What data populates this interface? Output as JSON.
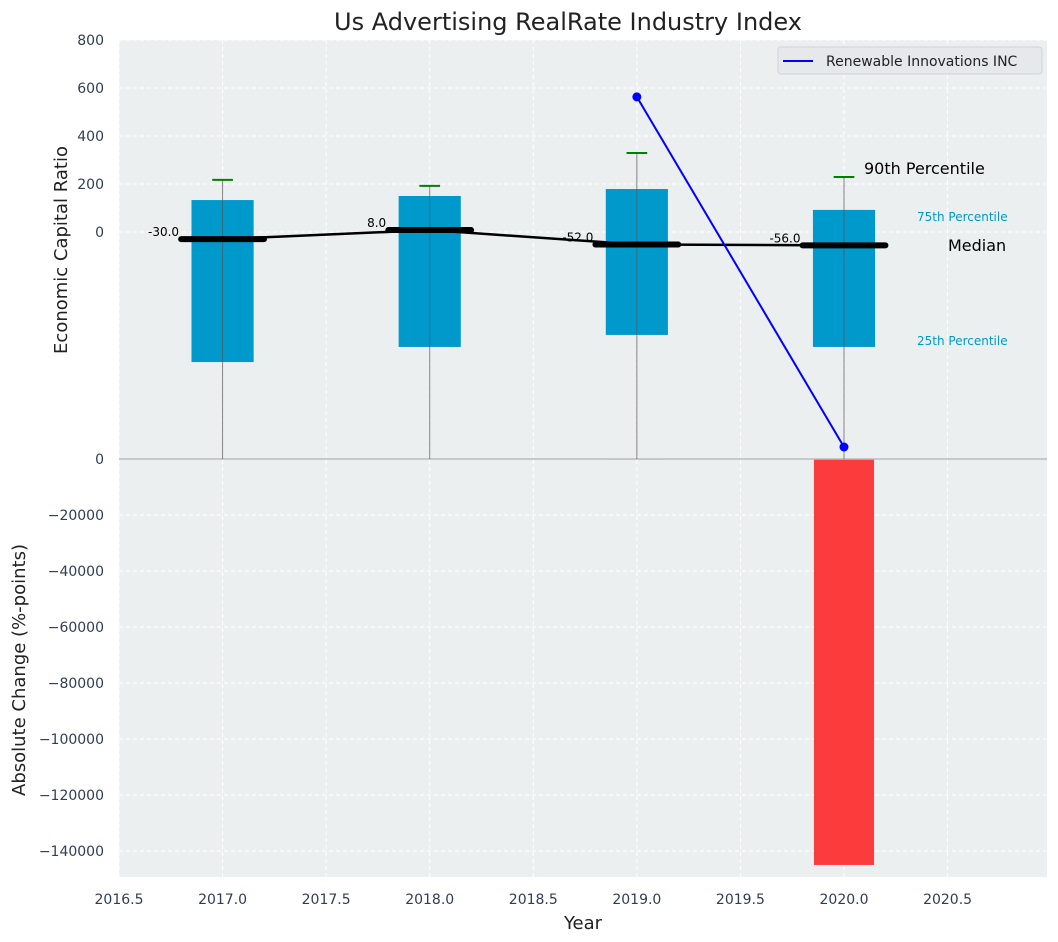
{
  "chart_data": [
    {
      "type": "bar",
      "panel": "top",
      "title": "Us Advertising RealRate Industry Index",
      "ylabel": "Economic Capital Ratio",
      "xlim": [
        2016.5,
        2020.98
      ],
      "ylim": [
        -946,
        800
      ],
      "grid": true,
      "y_ticks": [
        "0",
        "200",
        "400",
        "600",
        "800"
      ],
      "y_tick_values": [
        0,
        200,
        400,
        600,
        800
      ],
      "categories": [
        2017,
        2018,
        2019,
        2020
      ],
      "percentile_25": [
        -542,
        -479,
        -429,
        -479
      ],
      "percentile_75": [
        133,
        150,
        179,
        92
      ],
      "percentile_90": [
        217,
        192,
        329,
        229
      ],
      "whisker_low": [
        -946,
        -946,
        -946,
        -946
      ],
      "median": [
        -30,
        8,
        -52,
        -56
      ],
      "median_labels": [
        "-30.0",
        "8.0",
        "-52.0",
        "-56.0"
      ],
      "series": [
        {
          "name": "Renewable Innovations INC",
          "x": [
            2019,
            2020
          ],
          "values": [
            563,
            -896
          ],
          "color": "#0000ff"
        }
      ],
      "legend": {
        "placement": "top-right",
        "entries": [
          "Renewable Innovations INC"
        ]
      },
      "annotations": {
        "p90": "90th Percentile",
        "p75": "75th Percentile",
        "median": "Median",
        "p25": "25th Percentile"
      },
      "colors": {
        "box": "#0099cc",
        "whisker_cap": "#008000",
        "median": "#000000",
        "background": "#ebeff0"
      }
    },
    {
      "type": "bar",
      "panel": "bottom",
      "xlabel": "Year",
      "ylabel": "Absolute Change (%-points)",
      "xlim": [
        2016.5,
        2020.98
      ],
      "ylim": [
        -149300,
        0
      ],
      "grid": true,
      "x_ticks": [
        "2016.5",
        "2017.0",
        "2017.5",
        "2018.0",
        "2018.5",
        "2019.0",
        "2019.5",
        "2020.0",
        "2020.5"
      ],
      "x_tick_values": [
        2016.5,
        2017,
        2017.5,
        2018,
        2018.5,
        2019,
        2019.5,
        2020,
        2020.5
      ],
      "y_ticks": [
        "0",
        "−20000",
        "−40000",
        "−60000",
        "−80000",
        "−100000",
        "−120000",
        "−140000"
      ],
      "y_tick_values": [
        0,
        -20000,
        -40000,
        -60000,
        -80000,
        -100000,
        -120000,
        -140000
      ],
      "categories": [
        2019,
        2020
      ],
      "values": [
        -300,
        -145000
      ],
      "colors": {
        "bar": "#fc3c3c"
      }
    }
  ]
}
